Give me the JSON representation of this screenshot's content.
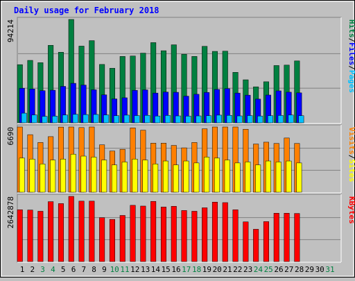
{
  "chart_data": {
    "type": "bar",
    "title": "Daily usage for February 2018",
    "categories": [
      "1",
      "2",
      "3",
      "4",
      "5",
      "6",
      "7",
      "8",
      "9",
      "10",
      "11",
      "12",
      "13",
      "14",
      "15",
      "16",
      "17",
      "18",
      "19",
      "20",
      "21",
      "22",
      "23",
      "24",
      "25",
      "26",
      "27",
      "28",
      "29",
      "30",
      "31"
    ],
    "weekend_days": [
      "3",
      "4",
      "10",
      "11",
      "17",
      "18",
      "24",
      "25",
      "31"
    ],
    "panels": [
      {
        "id": "top",
        "ylim": [
          0,
          94214
        ],
        "max_label": "94214",
        "legend": [
          "Pages",
          "/",
          "Files",
          "/",
          "Hits"
        ],
        "series": [
          {
            "name": "Hits",
            "color": "#008040",
            "values": [
              53000,
              56900,
              54800,
              70600,
              64300,
              94214,
              69900,
              74900,
              53200,
              49700,
              60500,
              60900,
              63500,
              73100,
              65700,
              71100,
              62500,
              60500,
              69700,
              65100,
              65300,
              46000,
              39200,
              32800,
              37400,
              52200,
              52600,
              56400,
              0,
              0,
              0
            ]
          },
          {
            "name": "Files",
            "color": "#0000ff",
            "values": [
              31500,
              30800,
              29300,
              29700,
              33200,
              36000,
              34400,
              30100,
              25500,
              21800,
              22800,
              29600,
              30000,
              27100,
              28000,
              27800,
              24300,
              26000,
              27700,
              30400,
              31100,
              27100,
              25200,
              21600,
              25300,
              29100,
              27900,
              27300,
              0,
              0,
              0
            ]
          },
          {
            "name": "Pages",
            "color": "#00c0ff",
            "values": [
              8800,
              7200,
              5900,
              6100,
              7100,
              7700,
              7500,
              7600,
              7200,
              6500,
              7000,
              6600,
              6800,
              6200,
              6700,
              6300,
              6100,
              6300,
              6500,
              7000,
              6800,
              6300,
              6600,
              6200,
              6500,
              6700,
              7100,
              6500,
              0,
              0,
              0
            ]
          }
        ]
      },
      {
        "id": "middle",
        "ylim": [
          0,
          6690
        ],
        "max_label": "6690",
        "legend": [
          "Sites",
          "/",
          "Visits"
        ],
        "series": [
          {
            "name": "Visits",
            "color": "#ff8000",
            "values": [
              6690,
              5900,
              5100,
              5700,
              6680,
              6690,
              6630,
              6690,
              4860,
              4220,
              4400,
              6600,
              6360,
              5030,
              5030,
              4800,
              4550,
              5100,
              6500,
              6690,
              6690,
              6690,
              6460,
              4940,
              5130,
              5000,
              5560,
              5000,
              0,
              0,
              0
            ]
          },
          {
            "name": "Sites",
            "color": "#ffff00",
            "values": [
              3500,
              3400,
              2900,
              3300,
              3400,
              3900,
              3700,
              3600,
              3300,
              2800,
              3100,
              3400,
              3300,
              2900,
              3200,
              2800,
              3200,
              3000,
              3600,
              3500,
              3300,
              3000,
              3100,
              2800,
              3200,
              3100,
              3200,
              3000,
              0,
              0,
              0
            ]
          }
        ]
      },
      {
        "id": "bottom",
        "ylim": [
          0,
          2642878
        ],
        "max_label": "2642878",
        "legend": [
          "KBytes"
        ],
        "series": [
          {
            "name": "KBytes",
            "color": "#ff0000",
            "values": [
              2100000,
              2090000,
              2040000,
              2430000,
              2350000,
              2642878,
              2450000,
              2450000,
              1780000,
              1710000,
              1870000,
              2280000,
              2250000,
              2440000,
              2210000,
              2240000,
              2070000,
              2040000,
              2180000,
              2410000,
              2390000,
              2100000,
              1610000,
              1310000,
              1620000,
              1960000,
              1960000,
              1950000,
              0,
              0,
              0
            ]
          }
        ]
      }
    ],
    "colors": {
      "background": "#c0c0c0",
      "plot_bg": "#c0c0c0",
      "title": "#0000ff",
      "day_label_weekday": "#000000",
      "day_label_weekend": "#008040",
      "gridline": "#808080"
    }
  }
}
